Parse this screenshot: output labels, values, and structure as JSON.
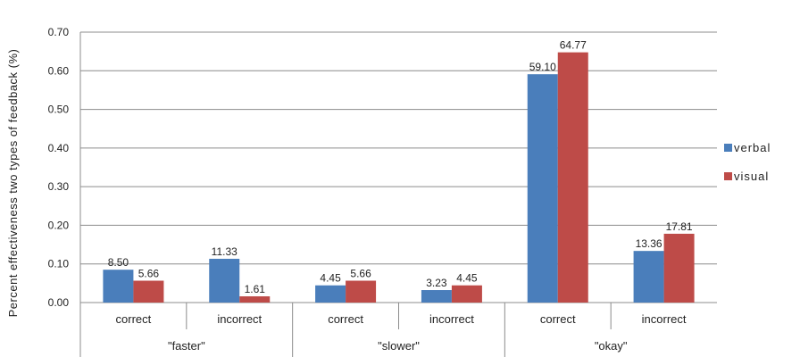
{
  "chart_data": {
    "type": "bar",
    "title": "",
    "ylabel": "Percent effectiveness two types of feedback  (%)",
    "ylim": [
      0,
      0.7
    ],
    "yticks": [
      0.0,
      0.1,
      0.2,
      0.3,
      0.4,
      0.5,
      0.6,
      0.7
    ],
    "grid": true,
    "legend_position": "right",
    "groups": [
      "\"faster\"",
      "\"slower\"",
      "\"okay\""
    ],
    "categories": [
      "correct",
      "incorrect",
      "correct",
      "incorrect",
      "correct",
      "incorrect"
    ],
    "series": [
      {
        "name": "verbal",
        "color": "#4a7ebb",
        "values": [
          0.085,
          0.1133,
          0.0445,
          0.0323,
          0.591,
          0.1336
        ],
        "labels": [
          "8.50",
          "11.33",
          "4.45",
          "3.23",
          "59.10",
          "13.36"
        ]
      },
      {
        "name": "visual",
        "color": "#be4b48",
        "values": [
          0.0566,
          0.0161,
          0.0566,
          0.0445,
          0.6477,
          0.1781
        ],
        "labels": [
          "5.66",
          "1.61",
          "5.66",
          "4.45",
          "64.77",
          "17.81"
        ]
      }
    ]
  }
}
